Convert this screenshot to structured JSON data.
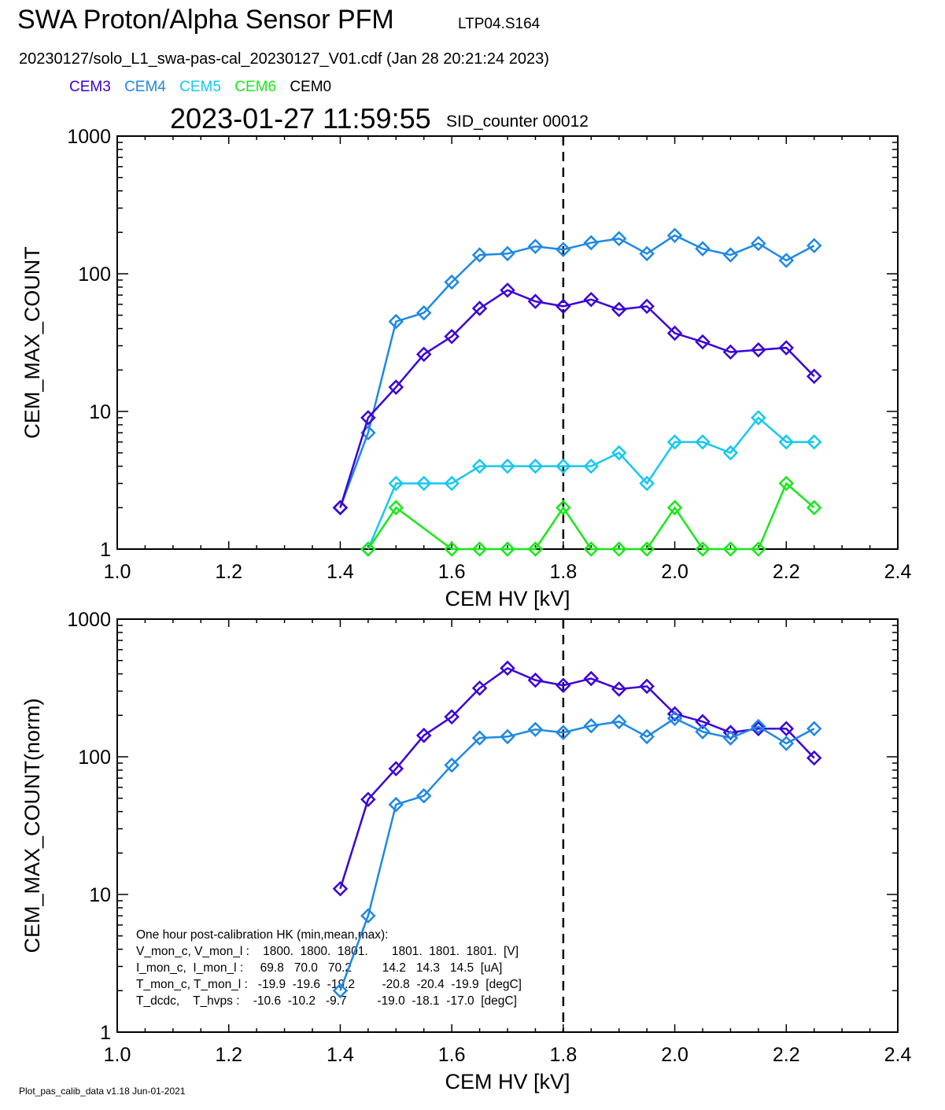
{
  "header": {
    "title": "SWA Proton/Alpha Sensor PFM",
    "subtitle_id": "LTP04.S164",
    "file_line": "20230127/solo_L1_swa-pas-cal_20230127_V01.cdf  (Jan 28 20:21:24 2023)",
    "timestamp": "2023-01-27 11:59:55",
    "sid": "SID_counter 00012"
  },
  "legend": [
    {
      "label": "CEM3",
      "color": "#3a00d8"
    },
    {
      "label": "CEM4",
      "color": "#1e88e5"
    },
    {
      "label": "CEM5",
      "color": "#14c8f0"
    },
    {
      "label": "CEM6",
      "color": "#18e818"
    },
    {
      "label": "CEM0",
      "color": "#000000"
    }
  ],
  "footer": "Plot_pas_calib_data v1.18 Jun-01-2021",
  "chart_data": [
    {
      "type": "line",
      "xlabel": "CEM HV [kV]",
      "ylabel": "CEM_MAX_COUNT",
      "xlim": [
        1.0,
        2.4
      ],
      "ylim": [
        1,
        1000
      ],
      "yscale": "log",
      "xticks": [
        "1.0",
        "1.2",
        "1.4",
        "1.6",
        "1.8",
        "2.0",
        "2.2",
        "2.4"
      ],
      "yticks": [
        "1",
        "10",
        "100",
        "1000"
      ],
      "vline_x": 1.8,
      "series": [
        {
          "name": "CEM4",
          "color": "#1e88e5",
          "x": [
            1.4,
            1.45,
            1.5,
            1.55,
            1.6,
            1.65,
            1.7,
            1.75,
            1.8,
            1.85,
            1.9,
            1.95,
            2.0,
            2.05,
            2.1,
            2.15,
            2.2,
            2.25
          ],
          "y": [
            2,
            7,
            45,
            52,
            87,
            137,
            140,
            158,
            150,
            168,
            180,
            140,
            190,
            152,
            137,
            166,
            125,
            160
          ]
        },
        {
          "name": "CEM3",
          "color": "#3a00d8",
          "x": [
            1.4,
            1.45,
            1.5,
            1.55,
            1.6,
            1.65,
            1.7,
            1.75,
            1.8,
            1.85,
            1.9,
            1.95,
            2.0,
            2.05,
            2.1,
            2.15,
            2.2,
            2.25
          ],
          "y": [
            2,
            9,
            15,
            26,
            35,
            56,
            76,
            63,
            58,
            65,
            55,
            58,
            37,
            32,
            27,
            28,
            29,
            18
          ]
        },
        {
          "name": "CEM5",
          "color": "#14c8f0",
          "x": [
            1.45,
            1.5,
            1.55,
            1.6,
            1.65,
            1.7,
            1.75,
            1.8,
            1.85,
            1.9,
            1.95,
            2.0,
            2.05,
            2.1,
            2.15,
            2.2,
            2.25
          ],
          "y": [
            1,
            3,
            3,
            3,
            4,
            4,
            4,
            4,
            4,
            5,
            3,
            6,
            6,
            5,
            9,
            6,
            6
          ]
        },
        {
          "name": "CEM6",
          "color": "#18e818",
          "x": [
            1.45,
            1.5,
            1.6,
            1.65,
            1.7,
            1.75,
            1.8,
            1.85,
            1.9,
            1.95,
            2.0,
            2.05,
            2.1,
            2.15,
            2.2,
            2.25
          ],
          "y": [
            1,
            2,
            1,
            1,
            1,
            1,
            2,
            1,
            1,
            1,
            2,
            1,
            1,
            1,
            3,
            2
          ]
        }
      ]
    },
    {
      "type": "line",
      "xlabel": "CEM HV [kV]",
      "ylabel": "CEM_MAX_COUNT(norm)",
      "xlim": [
        1.0,
        2.4
      ],
      "ylim": [
        1,
        1000
      ],
      "yscale": "log",
      "xticks": [
        "1.0",
        "1.2",
        "1.4",
        "1.6",
        "1.8",
        "2.0",
        "2.2",
        "2.4"
      ],
      "yticks": [
        "1",
        "10",
        "100",
        "1000"
      ],
      "vline_x": 1.8,
      "annotations": [
        "One hour post-calibration HK (min,mean,max):",
        "V_mon_c, V_mon_l :    1800.  1800.  1801.       1801.  1801.  1801.  [V]",
        "I_mon_c,  I_mon_l :     69.8   70.0   70.2         14.2   14.3   14.5  [uA]",
        "T_mon_c, T_mon_l :   -19.9  -19.6  -19.2        -20.8  -20.4  -19.9  [degC]",
        "T_dcdc,    T_hvps :    -10.6  -10.2   -9.7         -19.0  -18.1  -17.0  [degC]"
      ],
      "series": [
        {
          "name": "CEM3",
          "color": "#3a00d8",
          "x": [
            1.4,
            1.45,
            1.5,
            1.55,
            1.6,
            1.65,
            1.7,
            1.75,
            1.8,
            1.85,
            1.9,
            1.95,
            2.0,
            2.05,
            2.1,
            2.15,
            2.2,
            2.25
          ],
          "y": [
            11,
            49,
            82,
            143,
            195,
            315,
            440,
            360,
            330,
            370,
            310,
            325,
            205,
            180,
            150,
            160,
            160,
            98
          ]
        },
        {
          "name": "CEM4",
          "color": "#1e88e5",
          "x": [
            1.4,
            1.45,
            1.5,
            1.55,
            1.6,
            1.65,
            1.7,
            1.75,
            1.8,
            1.85,
            1.9,
            1.95,
            2.0,
            2.05,
            2.1,
            2.15,
            2.2,
            2.25
          ],
          "y": [
            2,
            7,
            45,
            52,
            87,
            137,
            140,
            158,
            150,
            168,
            180,
            140,
            190,
            152,
            137,
            166,
            125,
            160
          ]
        }
      ]
    }
  ]
}
